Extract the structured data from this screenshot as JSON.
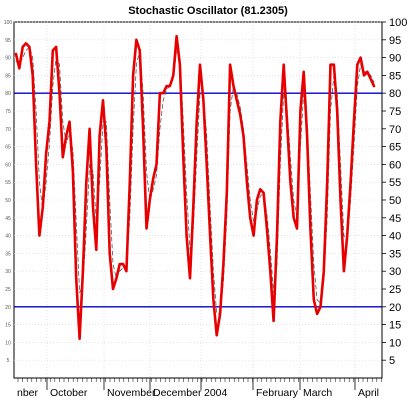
{
  "chart_data": {
    "type": "line",
    "title": "Stochastic Oscillator (81.2305)",
    "ylim": [
      0,
      100
    ],
    "yticks": [
      5,
      10,
      15,
      20,
      25,
      30,
      35,
      40,
      45,
      50,
      55,
      60,
      65,
      70,
      75,
      80,
      85,
      90,
      95,
      100
    ],
    "grid": true,
    "reference_lines": [
      80,
      20
    ],
    "x_axis_labels": [
      "nber",
      "October",
      "November",
      "December",
      "2004",
      "February",
      "March",
      "April"
    ],
    "series": [
      {
        "style": "solid-thick",
        "color": "#e80000",
        "values": [
          91,
          87,
          93,
          94,
          93,
          85,
          60,
          40,
          48,
          63,
          72,
          92,
          93,
          80,
          62,
          68,
          72,
          58,
          28,
          11,
          30,
          55,
          70,
          48,
          36,
          68,
          78,
          65,
          35,
          25,
          28,
          32,
          32,
          30,
          55,
          85,
          95,
          92,
          70,
          42,
          50,
          56,
          60,
          80,
          80,
          82,
          82,
          85,
          96,
          88,
          62,
          40,
          28,
          48,
          72,
          88,
          78,
          60,
          40,
          22,
          12,
          18,
          32,
          52,
          88,
          82,
          78,
          74,
          68,
          55,
          45,
          40,
          50,
          53,
          52,
          42,
          30,
          16,
          40,
          72,
          88,
          72,
          55,
          45,
          42,
          75,
          86,
          68,
          42,
          22,
          18,
          20,
          30,
          55,
          88,
          88,
          75,
          50,
          30,
          40,
          55,
          72,
          88,
          90,
          85,
          86,
          84,
          82
        ]
      },
      {
        "style": "dashed-thin",
        "color": "#555555",
        "values": [
          89,
          88,
          90,
          92,
          93,
          90,
          75,
          55,
          47,
          55,
          66,
          82,
          90,
          88,
          72,
          66,
          69,
          64,
          44,
          24,
          26,
          42,
          60,
          58,
          44,
          55,
          72,
          72,
          50,
          32,
          28,
          30,
          31,
          31,
          45,
          70,
          88,
          92,
          80,
          58,
          50,
          53,
          57,
          70,
          78,
          81,
          82,
          84,
          92,
          90,
          72,
          52,
          36,
          42,
          62,
          80,
          80,
          68,
          48,
          30,
          18,
          18,
          27,
          45,
          75,
          82,
          80,
          76,
          70,
          60,
          50,
          44,
          47,
          51,
          52,
          46,
          36,
          24,
          32,
          60,
          80,
          76,
          62,
          50,
          45,
          65,
          80,
          72,
          52,
          32,
          22,
          21,
          27,
          45,
          75,
          85,
          80,
          60,
          40,
          38,
          50,
          65,
          82,
          88,
          86,
          86,
          85,
          83
        ]
      }
    ]
  }
}
